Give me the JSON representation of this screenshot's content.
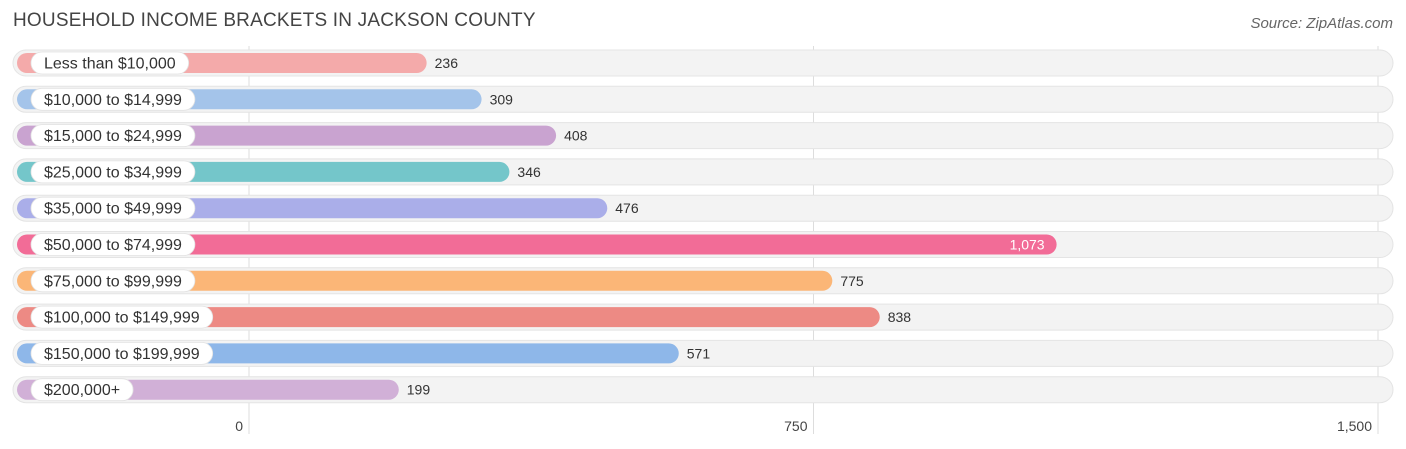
{
  "title": "HOUSEHOLD INCOME BRACKETS IN JACKSON COUNTY",
  "source": "Source: ZipAtlas.com",
  "chart_data": {
    "type": "bar",
    "orientation": "horizontal",
    "categories": [
      "Less than $10,000",
      "$10,000 to $14,999",
      "$15,000 to $24,999",
      "$25,000 to $34,999",
      "$35,000 to $49,999",
      "$50,000 to $74,999",
      "$75,000 to $99,999",
      "$100,000 to $149,999",
      "$150,000 to $199,999",
      "$200,000+"
    ],
    "values": [
      236,
      309,
      408,
      346,
      476,
      1073,
      775,
      838,
      571,
      199
    ],
    "value_labels": [
      "236",
      "309",
      "408",
      "346",
      "476",
      "1,073",
      "775",
      "838",
      "571",
      "199"
    ],
    "colors": [
      "#f4aaaa",
      "#a4c4ea",
      "#c9a3d0",
      "#74c6ca",
      "#aaaee9",
      "#f26c97",
      "#fbb677",
      "#ed8a84",
      "#8eb7e9",
      "#d1b0d7"
    ],
    "xlim": [
      0,
      1500
    ],
    "ticks": [
      0,
      750,
      1500
    ],
    "tick_labels": [
      "0",
      "750",
      "1,500"
    ],
    "grid": true
  }
}
